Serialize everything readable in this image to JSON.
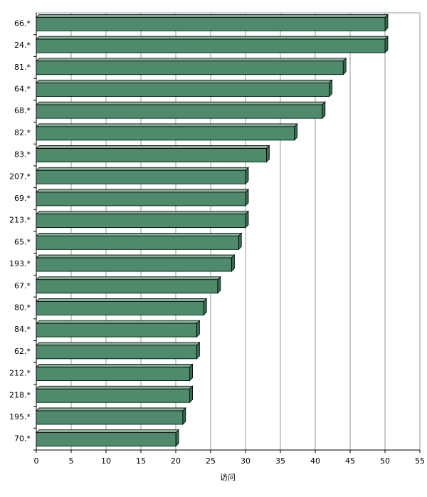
{
  "chart_data": {
    "type": "bar3d-horizontal",
    "x_label": "访问",
    "categories": [
      "66.*",
      "24.*",
      "81.*",
      "64.*",
      "68.*",
      "82.*",
      "83.*",
      "207.*",
      "69.*",
      "213.*",
      "65.*",
      "193.*",
      "67.*",
      "80.*",
      "84.*",
      "62.*",
      "212.*",
      "218.*",
      "195.*",
      "70.*"
    ],
    "values": [
      50,
      50,
      44,
      42,
      41,
      37,
      33,
      30,
      30,
      30,
      29,
      28,
      26,
      24,
      23,
      23,
      22,
      22,
      21,
      20
    ],
    "color": "#4f8a6c",
    "xlim": [
      0,
      55
    ],
    "xticks": [
      0,
      5,
      10,
      15,
      20,
      25,
      30,
      35,
      40,
      45,
      50,
      55
    ],
    "grid": true
  }
}
